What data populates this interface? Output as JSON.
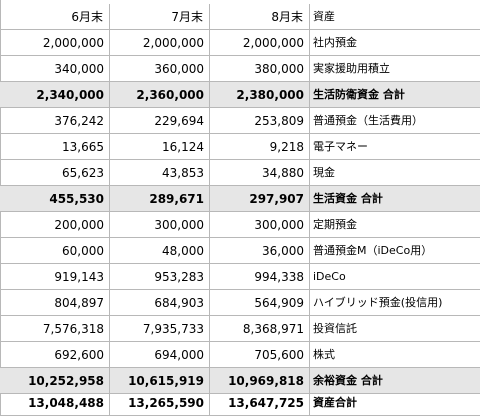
{
  "headers": [
    "6月末",
    "7月末",
    "8月末",
    "資産"
  ],
  "rows": [
    {
      "v": [
        "2,000,000",
        "2,000,000",
        "2,000,000"
      ],
      "label": "社内預金",
      "total": false
    },
    {
      "v": [
        "340,000",
        "360,000",
        "380,000"
      ],
      "label": "実家援助用積立",
      "total": false
    },
    {
      "v": [
        "2,340,000",
        "2,360,000",
        "2,380,000"
      ],
      "label": "生活防衛資金 合計",
      "total": true
    },
    {
      "v": [
        "376,242",
        "229,694",
        "253,809"
      ],
      "label": "普通預金（生活費用）",
      "total": false
    },
    {
      "v": [
        "13,665",
        "16,124",
        "9,218"
      ],
      "label": "電子マネー",
      "total": false
    },
    {
      "v": [
        "65,623",
        "43,853",
        "34,880"
      ],
      "label": "現金",
      "total": false
    },
    {
      "v": [
        "455,530",
        "289,671",
        "297,907"
      ],
      "label": "生活資金 合計",
      "total": true
    },
    {
      "v": [
        "200,000",
        "300,000",
        "300,000"
      ],
      "label": "定期預金",
      "total": false
    },
    {
      "v": [
        "60,000",
        "48,000",
        "36,000"
      ],
      "label": "普通預金M（iDeCo用）",
      "total": false
    },
    {
      "v": [
        "919,143",
        "953,283",
        "994,338"
      ],
      "label": "iDeCo",
      "total": false
    },
    {
      "v": [
        "804,897",
        "684,903",
        "564,909"
      ],
      "label": "ハイブリッド預金(投信用)",
      "total": false
    },
    {
      "v": [
        "7,576,318",
        "7,935,733",
        "8,368,971"
      ],
      "label": "投資信託",
      "total": false
    },
    {
      "v": [
        "692,600",
        "694,000",
        "705,600"
      ],
      "label": "株式",
      "total": false
    },
    {
      "v": [
        "10,252,958",
        "10,615,919",
        "10,969,818"
      ],
      "label": "余裕資金 合計",
      "total": true
    }
  ],
  "grand_total": {
    "v": [
      "13,048,488",
      "13,265,590",
      "13,647,725"
    ],
    "label": "資産合計"
  }
}
